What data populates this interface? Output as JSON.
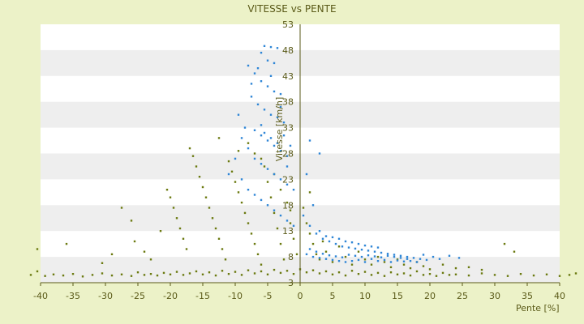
{
  "chart_data": {
    "type": "scatter",
    "title": "VITESSE vs PENTE",
    "xlabel": "Pente [%]",
    "ylabel": "Vitesse [km/h]",
    "xlim": [
      -40,
      40
    ],
    "ylim": [
      3,
      53
    ],
    "x_ticks": [
      -40,
      -35,
      -30,
      -25,
      -20,
      -15,
      -10,
      -5,
      0,
      5,
      10,
      15,
      20,
      25,
      30,
      35,
      40
    ],
    "y_ticks": [
      3,
      8,
      13,
      18,
      23,
      28,
      33,
      38,
      43,
      48,
      53
    ],
    "grid": "horizontal alternating bands",
    "legend": "none",
    "colors": {
      "series_olive": "#6b7a10",
      "series_blue": "#2f86d6",
      "background": "#ecf2c8",
      "band": "#eeeeee"
    },
    "series": [
      {
        "color": "#6b7a10",
        "points": [
          [
            -41.5,
            4.5
          ],
          [
            -40.5,
            5.2
          ],
          [
            -39.3,
            4.3
          ],
          [
            -38.0,
            4.6
          ],
          [
            -36.5,
            4.4
          ],
          [
            -35.0,
            4.7
          ],
          [
            -33.5,
            4.2
          ],
          [
            -32.0,
            4.5
          ],
          [
            -30.5,
            4.8
          ],
          [
            -29.0,
            4.4
          ],
          [
            -27.5,
            4.6
          ],
          [
            -26.0,
            4.3
          ],
          [
            -25.0,
            5.0
          ],
          [
            -24.0,
            4.5
          ],
          [
            -23.0,
            4.7
          ],
          [
            -22.0,
            4.4
          ],
          [
            -21.0,
            4.9
          ],
          [
            -20.0,
            4.6
          ],
          [
            -19.0,
            5.1
          ],
          [
            -18.0,
            4.5
          ],
          [
            -17.0,
            4.8
          ],
          [
            -16.0,
            5.2
          ],
          [
            -15.0,
            4.6
          ],
          [
            -14.0,
            5.0
          ],
          [
            -13.0,
            4.4
          ],
          [
            -12.0,
            5.3
          ],
          [
            -11.0,
            4.7
          ],
          [
            -10.0,
            5.1
          ],
          [
            -9.0,
            4.5
          ],
          [
            -8.0,
            5.4
          ],
          [
            -7.0,
            4.8
          ],
          [
            -6.0,
            5.2
          ],
          [
            -5.0,
            4.6
          ],
          [
            -4.0,
            5.5
          ],
          [
            -3.0,
            4.9
          ],
          [
            -2.0,
            5.3
          ],
          [
            -1.0,
            4.7
          ],
          [
            0.0,
            5.6
          ],
          [
            1.0,
            5.0
          ],
          [
            2.0,
            5.4
          ],
          [
            3.0,
            4.8
          ],
          [
            4.0,
            5.2
          ],
          [
            5.0,
            4.6
          ],
          [
            6.0,
            5.0
          ],
          [
            7.0,
            4.4
          ],
          [
            8.0,
            5.3
          ],
          [
            9.0,
            4.7
          ],
          [
            10.0,
            5.1
          ],
          [
            11.0,
            4.5
          ],
          [
            12.0,
            4.9
          ],
          [
            13.0,
            4.3
          ],
          [
            14.0,
            5.0
          ],
          [
            15.0,
            4.6
          ],
          [
            16.0,
            4.8
          ],
          [
            17.0,
            4.4
          ],
          [
            18.0,
            5.2
          ],
          [
            19.0,
            4.5
          ],
          [
            20.0,
            4.7
          ],
          [
            21.0,
            4.3
          ],
          [
            22.0,
            4.9
          ],
          [
            23.0,
            4.5
          ],
          [
            24.0,
            4.6
          ],
          [
            26.0,
            4.4
          ],
          [
            28.0,
            4.8
          ],
          [
            30.0,
            4.5
          ],
          [
            32.0,
            4.3
          ],
          [
            34.0,
            4.7
          ],
          [
            36.0,
            4.4
          ],
          [
            38.0,
            4.6
          ],
          [
            40.0,
            4.3
          ],
          [
            41.5,
            4.5
          ],
          [
            42.5,
            4.8
          ],
          [
            -40.5,
            9.5
          ],
          [
            -36.0,
            10.5
          ],
          [
            -30.5,
            6.8
          ],
          [
            -29.0,
            8.5
          ],
          [
            -27.5,
            17.5
          ],
          [
            -26.0,
            15.0
          ],
          [
            -25.5,
            11.0
          ],
          [
            -24.0,
            9.0
          ],
          [
            -23.0,
            7.5
          ],
          [
            -21.5,
            13.0
          ],
          [
            -20.5,
            21.0
          ],
          [
            -20.0,
            19.5
          ],
          [
            -19.5,
            17.5
          ],
          [
            -19.0,
            15.5
          ],
          [
            -18.5,
            13.5
          ],
          [
            -18.0,
            11.5
          ],
          [
            -17.5,
            9.5
          ],
          [
            -17.0,
            29.0
          ],
          [
            -16.5,
            27.5
          ],
          [
            -16.0,
            25.5
          ],
          [
            -15.5,
            23.5
          ],
          [
            -15.0,
            21.5
          ],
          [
            -14.5,
            19.5
          ],
          [
            -14.0,
            17.5
          ],
          [
            -13.5,
            15.5
          ],
          [
            -13.0,
            13.5
          ],
          [
            -12.5,
            11.5
          ],
          [
            -12.0,
            9.5
          ],
          [
            -11.5,
            7.5
          ],
          [
            -11.0,
            26.5
          ],
          [
            -10.5,
            24.5
          ],
          [
            -10.0,
            22.5
          ],
          [
            -9.5,
            20.5
          ],
          [
            -9.0,
            18.5
          ],
          [
            -8.5,
            16.5
          ],
          [
            -8.0,
            14.5
          ],
          [
            -7.5,
            12.5
          ],
          [
            -7.0,
            10.5
          ],
          [
            -6.5,
            8.5
          ],
          [
            -6.0,
            6.5
          ],
          [
            -5.5,
            25.5
          ],
          [
            -5.0,
            22.5
          ],
          [
            -4.5,
            19.5
          ],
          [
            -4.0,
            16.5
          ],
          [
            -3.5,
            13.5
          ],
          [
            -3.0,
            10.5
          ],
          [
            -2.5,
            7.5
          ],
          [
            -2.0,
            18.5
          ],
          [
            -1.5,
            14.5
          ],
          [
            -1.0,
            11.5
          ],
          [
            -0.5,
            8.5
          ],
          [
            0.5,
            17.5
          ],
          [
            1.0,
            14.5
          ],
          [
            1.5,
            12.5
          ],
          [
            2.0,
            10.5
          ],
          [
            2.5,
            8.5
          ],
          [
            3.0,
            7.5
          ],
          [
            3.5,
            11.0
          ],
          [
            4.0,
            9.0
          ],
          [
            5.0,
            7.0
          ],
          [
            6.0,
            10.0
          ],
          [
            7.0,
            8.0
          ],
          [
            8.0,
            6.5
          ],
          [
            9.0,
            9.0
          ],
          [
            10.0,
            7.5
          ],
          [
            11.0,
            6.5
          ],
          [
            12.0,
            8.0
          ],
          [
            13.0,
            7.0
          ],
          [
            14.0,
            6.0
          ],
          [
            15.0,
            7.5
          ],
          [
            16.0,
            6.5
          ],
          [
            17.0,
            5.8
          ],
          [
            18.0,
            7.0
          ],
          [
            19.0,
            6.2
          ],
          [
            20.0,
            5.6
          ],
          [
            22.0,
            6.5
          ],
          [
            24.0,
            5.8
          ],
          [
            26.0,
            6.0
          ],
          [
            28.0,
            5.5
          ],
          [
            31.5,
            10.5
          ],
          [
            33.0,
            9.0
          ],
          [
            -8.0,
            30.0
          ],
          [
            -7.0,
            28.0
          ],
          [
            -6.0,
            27.0
          ],
          [
            -12.5,
            31.0
          ],
          [
            -9.5,
            28.5
          ],
          [
            -4.0,
            24.0
          ],
          [
            -3.0,
            21.0
          ],
          [
            -1.5,
            17.0
          ],
          [
            1.5,
            20.5
          ]
        ]
      },
      {
        "color": "#2f86d6",
        "points": [
          [
            -5.5,
            48.8
          ],
          [
            -4.5,
            48.6
          ],
          [
            -3.5,
            48.4
          ],
          [
            -6.0,
            47.5
          ],
          [
            -5.0,
            46.0
          ],
          [
            -4.0,
            45.5
          ],
          [
            -8.0,
            45.0
          ],
          [
            -7.0,
            43.5
          ],
          [
            -6.0,
            42.0
          ],
          [
            -5.0,
            41.0
          ],
          [
            -4.0,
            40.0
          ],
          [
            -3.0,
            39.5
          ],
          [
            -7.5,
            39.0
          ],
          [
            -6.5,
            37.5
          ],
          [
            -5.5,
            36.5
          ],
          [
            -4.5,
            35.5
          ],
          [
            -3.5,
            35.0
          ],
          [
            -2.5,
            34.0
          ],
          [
            -8.5,
            33.0
          ],
          [
            -7.0,
            32.5
          ],
          [
            -6.0,
            31.5
          ],
          [
            -5.0,
            30.5
          ],
          [
            -4.0,
            29.5
          ],
          [
            -3.0,
            28.5
          ],
          [
            -2.0,
            27.5
          ],
          [
            -9.5,
            35.5
          ],
          [
            -8.0,
            29.0
          ],
          [
            -7.0,
            27.0
          ],
          [
            -6.0,
            26.0
          ],
          [
            -5.0,
            25.0
          ],
          [
            -4.0,
            24.0
          ],
          [
            -3.0,
            23.0
          ],
          [
            -2.0,
            22.0
          ],
          [
            -1.0,
            21.0
          ],
          [
            -9.0,
            31.0
          ],
          [
            -10.0,
            27.0
          ],
          [
            -11.0,
            24.0
          ],
          [
            -9.0,
            23.0
          ],
          [
            -8.0,
            21.0
          ],
          [
            -7.0,
            20.0
          ],
          [
            -6.0,
            19.0
          ],
          [
            -5.0,
            18.0
          ],
          [
            -4.0,
            17.0
          ],
          [
            -3.0,
            16.0
          ],
          [
            -2.0,
            15.0
          ],
          [
            -1.0,
            14.0
          ],
          [
            1.5,
            30.5
          ],
          [
            3.0,
            28.0
          ],
          [
            1.0,
            24.0
          ],
          [
            2.0,
            18.0
          ],
          [
            0.5,
            16.0
          ],
          [
            1.5,
            14.0
          ],
          [
            2.5,
            12.5
          ],
          [
            3.5,
            11.5
          ],
          [
            4.5,
            11.0
          ],
          [
            5.5,
            10.5
          ],
          [
            6.5,
            10.0
          ],
          [
            7.5,
            9.8
          ],
          [
            8.5,
            9.6
          ],
          [
            9.5,
            9.4
          ],
          [
            10.5,
            9.2
          ],
          [
            11.5,
            9.0
          ],
          [
            12.5,
            8.8
          ],
          [
            13.5,
            8.6
          ],
          [
            14.5,
            8.4
          ],
          [
            15.5,
            8.2
          ],
          [
            16.5,
            8.0
          ],
          [
            17.5,
            7.8
          ],
          [
            18.5,
            7.6
          ],
          [
            19.5,
            7.4
          ],
          [
            1.0,
            8.5
          ],
          [
            2.0,
            8.0
          ],
          [
            3.0,
            7.8
          ],
          [
            4.0,
            7.6
          ],
          [
            5.0,
            7.4
          ],
          [
            6.0,
            7.2
          ],
          [
            7.0,
            7.0
          ],
          [
            8.0,
            7.2
          ],
          [
            9.0,
            7.4
          ],
          [
            10.0,
            7.0
          ],
          [
            11.0,
            7.6
          ],
          [
            12.0,
            7.2
          ],
          [
            13.0,
            7.4
          ],
          [
            14.0,
            7.0
          ],
          [
            15.0,
            7.3
          ],
          [
            16.0,
            7.1
          ],
          [
            17.0,
            7.2
          ],
          [
            18.0,
            7.0
          ],
          [
            1.5,
            9.5
          ],
          [
            2.5,
            9.0
          ],
          [
            3.5,
            8.6
          ],
          [
            4.5,
            8.3
          ],
          [
            5.5,
            8.1
          ],
          [
            6.5,
            7.9
          ],
          [
            7.5,
            8.4
          ],
          [
            8.5,
            8.2
          ],
          [
            9.5,
            8.0
          ],
          [
            10.5,
            8.3
          ],
          [
            11.5,
            8.1
          ],
          [
            12.5,
            7.9
          ],
          [
            13.5,
            8.2
          ],
          [
            14.5,
            8.0
          ],
          [
            15.5,
            7.8
          ],
          [
            16.5,
            7.6
          ],
          [
            19.0,
            8.4
          ],
          [
            20.5,
            8.0
          ],
          [
            21.5,
            7.6
          ],
          [
            23.0,
            8.2
          ],
          [
            24.5,
            7.8
          ],
          [
            3.0,
            13.0
          ],
          [
            4.0,
            12.0
          ],
          [
            5.0,
            11.8
          ],
          [
            6.0,
            11.5
          ],
          [
            7.0,
            11.0
          ],
          [
            8.0,
            10.8
          ],
          [
            9.0,
            10.5
          ],
          [
            10.0,
            10.2
          ],
          [
            11.0,
            10.0
          ],
          [
            12.0,
            9.8
          ],
          [
            -6.5,
            44.5
          ],
          [
            -7.5,
            41.5
          ],
          [
            -4.5,
            43.0
          ],
          [
            -3.0,
            37.0
          ],
          [
            -2.5,
            31.5
          ],
          [
            -1.5,
            29.5
          ],
          [
            -6.0,
            33.5
          ],
          [
            -5.5,
            32.0
          ],
          [
            -4.5,
            31.0
          ],
          [
            -3.5,
            30.0
          ],
          [
            -2.0,
            25.5
          ]
        ]
      }
    ]
  }
}
